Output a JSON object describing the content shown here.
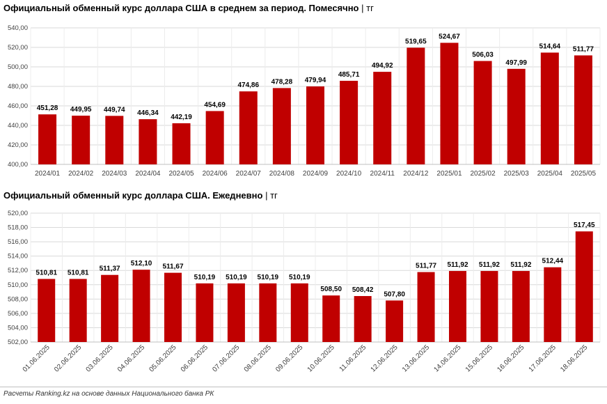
{
  "colors": {
    "bar": "#c00000",
    "grid": "#d9d9d9",
    "axis": "#bfbfbf",
    "text": "#000000",
    "tick": "#404040"
  },
  "chart_data": [
    {
      "type": "bar",
      "title": "Официальный обменный курс доллара США в среднем за период. Помесячно",
      "unit_sep": "|",
      "unit": "тг",
      "categories": [
        "2024/01",
        "2024/02",
        "2024/03",
        "2024/04",
        "2024/05",
        "2024/06",
        "2024/07",
        "2024/08",
        "2024/09",
        "2024/10",
        "2024/11",
        "2024/12",
        "2025/01",
        "2025/02",
        "2025/03",
        "2025/04",
        "2025/05"
      ],
      "values": [
        451.28,
        449.95,
        449.74,
        446.34,
        442.19,
        454.69,
        474.86,
        478.28,
        479.94,
        485.71,
        494.92,
        519.65,
        524.67,
        506.03,
        497.99,
        514.64,
        511.77
      ],
      "labels": [
        "451,28",
        "449,95",
        "449,74",
        "446,34",
        "442,19",
        "454,69",
        "474,86",
        "478,28",
        "479,94",
        "485,71",
        "494,92",
        "519,65",
        "524,67",
        "506,03",
        "497,99",
        "514,64",
        "511,77"
      ],
      "ylim": [
        400,
        540
      ],
      "yticks": [
        400,
        420,
        440,
        460,
        480,
        500,
        520,
        540
      ],
      "ytick_labels": [
        "400,00",
        "420,00",
        "440,00",
        "460,00",
        "480,00",
        "500,00",
        "520,00",
        "540,00"
      ],
      "grid": true
    },
    {
      "type": "bar",
      "title": "Официальный обменный курс доллара США. Ежедневно",
      "unit_sep": "|",
      "unit": "тг",
      "categories": [
        "01.06.2025",
        "02.06.2025",
        "03.06.2025",
        "04.06.2025",
        "05.06.2025",
        "06.06.2025",
        "07.06.2025",
        "08.06.2025",
        "09.06.2025",
        "10.06.2025",
        "11.06.2025",
        "12.06.2025",
        "13.06.2025",
        "14.06.2025",
        "15.06.2025",
        "16.06.2025",
        "17.06.2025",
        "18.06.2025"
      ],
      "values": [
        510.81,
        510.81,
        511.37,
        512.1,
        511.67,
        510.19,
        510.19,
        510.19,
        510.19,
        508.5,
        508.42,
        507.8,
        511.77,
        511.92,
        511.92,
        511.92,
        512.44,
        517.45
      ],
      "labels": [
        "510,81",
        "510,81",
        "511,37",
        "512,10",
        "511,67",
        "510,19",
        "510,19",
        "510,19",
        "510,19",
        "508,50",
        "508,42",
        "507,80",
        "511,77",
        "511,92",
        "511,92",
        "511,92",
        "512,44",
        "517,45"
      ],
      "ylim": [
        502,
        520
      ],
      "yticks": [
        502,
        504,
        506,
        508,
        510,
        512,
        514,
        516,
        518,
        520
      ],
      "ytick_labels": [
        "502,00",
        "504,00",
        "506,00",
        "508,00",
        "510,00",
        "512,00",
        "514,00",
        "516,00",
        "518,00",
        "520,00"
      ],
      "grid": true
    }
  ],
  "footer": "Расчеты Ranking.kz на основе данных Национального банка РК"
}
